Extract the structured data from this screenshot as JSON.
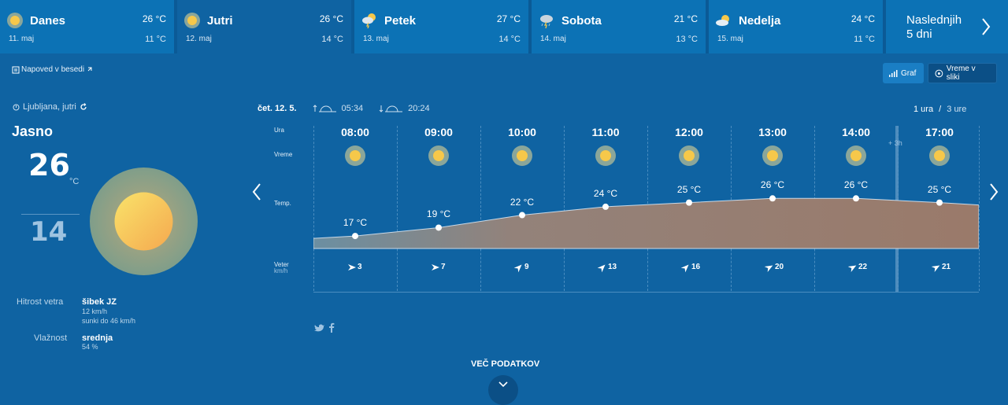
{
  "days": [
    {
      "name": "Danes",
      "date": "11. maj",
      "max": "26 °C",
      "min": "11 °C",
      "icon": "sun-icon",
      "selected": false
    },
    {
      "name": "Jutri",
      "date": "12. maj",
      "max": "26 °C",
      "min": "14 °C",
      "icon": "sun-icon",
      "selected": true
    },
    {
      "name": "Petek",
      "date": "13. maj",
      "max": "27 °C",
      "min": "14 °C",
      "icon": "thunderstorm-sun-icon",
      "selected": false
    },
    {
      "name": "Sobota",
      "date": "14. maj",
      "max": "21 °C",
      "min": "13 °C",
      "icon": "thunderstorm-icon",
      "selected": false
    },
    {
      "name": "Nedelja",
      "date": "15. maj",
      "max": "24 °C",
      "min": "11 °C",
      "icon": "cloud-sun-icon",
      "selected": false
    }
  ],
  "next5": {
    "line1": "Naslednjih",
    "line2": "5 dni"
  },
  "napoved_label": "Napoved v besedi",
  "buttons": {
    "graf": "Graf",
    "slike": "Vreme v sliki"
  },
  "location": "Ljubljana, jutri",
  "condition": "Jasno",
  "temp_max": "26",
  "temp_unit": "°C",
  "temp_min": "14",
  "details": {
    "wind_label": "Hitrost vetra",
    "wind_value": "šibek JZ",
    "wind_speed": "12 km/h",
    "wind_gust": "sunki do 46 km/h",
    "humidity_label": "Vlažnost",
    "humidity_value": "srednja",
    "humidity_pct": "54 %"
  },
  "date_label": "čet. 12. 5.",
  "sunrise": "05:34",
  "sunset": "20:24",
  "units": {
    "one": "1 ura",
    "sep": "/",
    "three": "3 ure"
  },
  "row_labels": {
    "ura": "Ura",
    "vreme": "Vreme",
    "temp": "Temp.",
    "veter": "Veter",
    "veter_unit": "km/h"
  },
  "plus3": "+ 3h",
  "hourly": [
    {
      "hour": "08:00",
      "temp": 17,
      "temp_label": "17 °C",
      "wind": "3"
    },
    {
      "hour": "09:00",
      "temp": 19,
      "temp_label": "19 °C",
      "wind": "7"
    },
    {
      "hour": "10:00",
      "temp": 22,
      "temp_label": "22 °C",
      "wind": "9"
    },
    {
      "hour": "11:00",
      "temp": 24,
      "temp_label": "24 °C",
      "wind": "13"
    },
    {
      "hour": "12:00",
      "temp": 25,
      "temp_label": "25 °C",
      "wind": "16"
    },
    {
      "hour": "13:00",
      "temp": 26,
      "temp_label": "26 °C",
      "wind": "20"
    },
    {
      "hour": "14:00",
      "temp": 26,
      "temp_label": "26 °C",
      "wind": "22"
    },
    {
      "hour": "17:00",
      "temp": 25,
      "temp_label": "25 °C",
      "wind": "21"
    }
  ],
  "more_data": "VEČ PODATKOV",
  "colors": {
    "bg": "#0f63a2",
    "tab": "#0c72b5",
    "sun": "#f6c84a",
    "area": "#9a7a6a"
  }
}
